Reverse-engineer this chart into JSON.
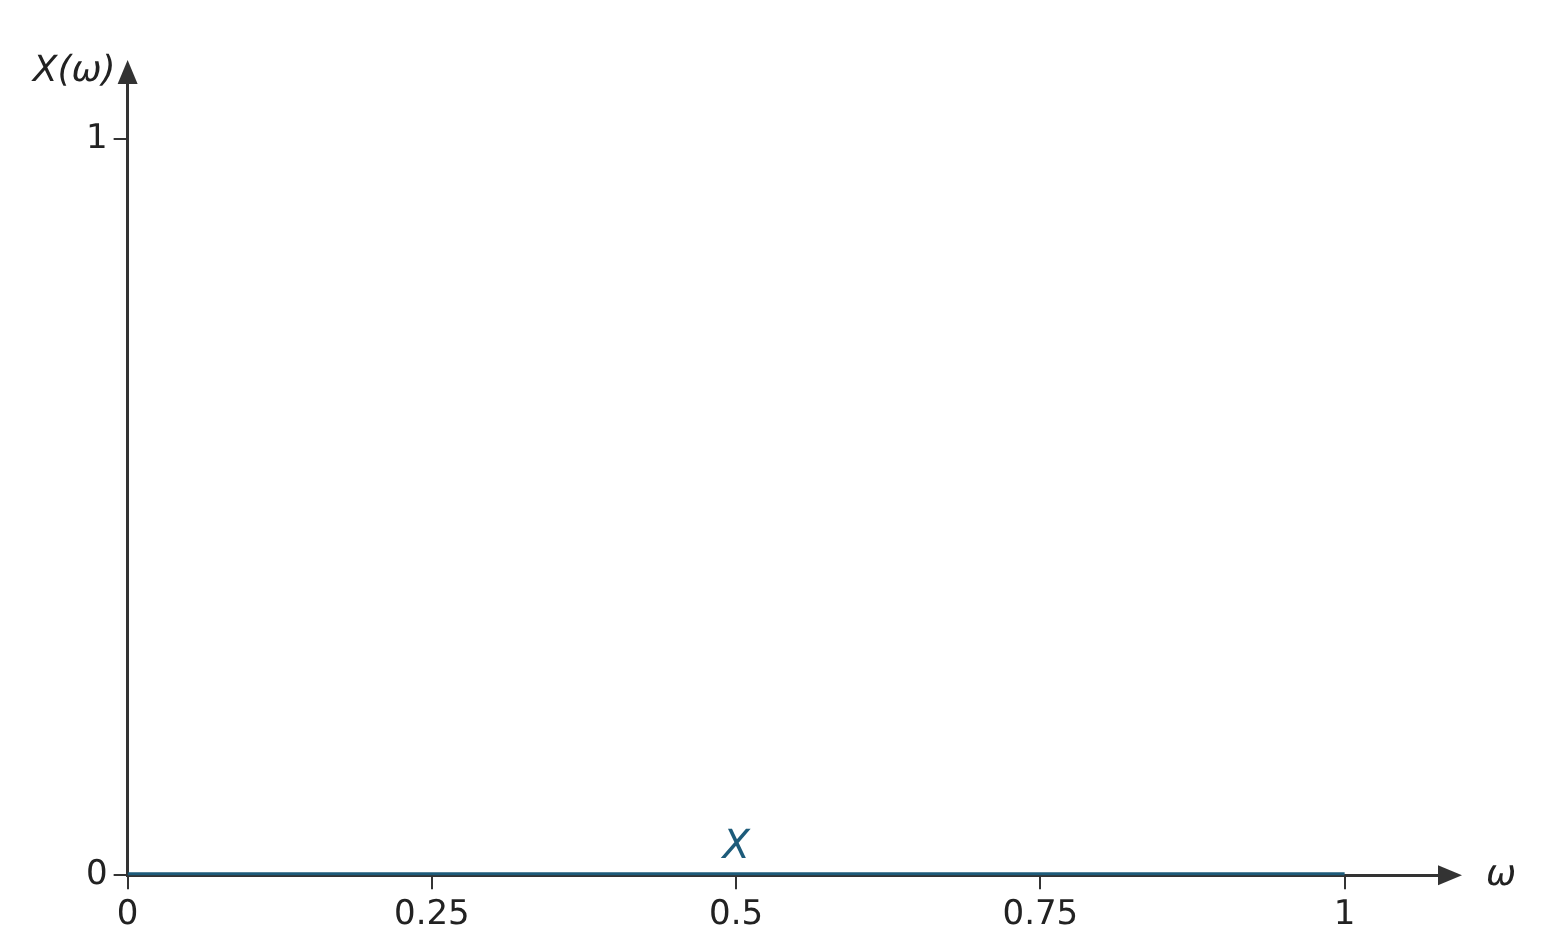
{
  "chart_data": {
    "type": "line",
    "xlabel": "ω",
    "ylabel": "X(ω)",
    "x": [
      0,
      1
    ],
    "series": [
      {
        "name": "X",
        "color": "#1d5b7a",
        "values": [
          0,
          0
        ]
      }
    ],
    "xlim": [
      0,
      1.08
    ],
    "ylim": [
      0,
      1.08
    ],
    "xticks": [
      0,
      0.25,
      0.5,
      0.75,
      1
    ],
    "yticks": [
      0,
      1
    ],
    "grid": false,
    "legend": false,
    "marker": "none",
    "line_style": "solid"
  }
}
